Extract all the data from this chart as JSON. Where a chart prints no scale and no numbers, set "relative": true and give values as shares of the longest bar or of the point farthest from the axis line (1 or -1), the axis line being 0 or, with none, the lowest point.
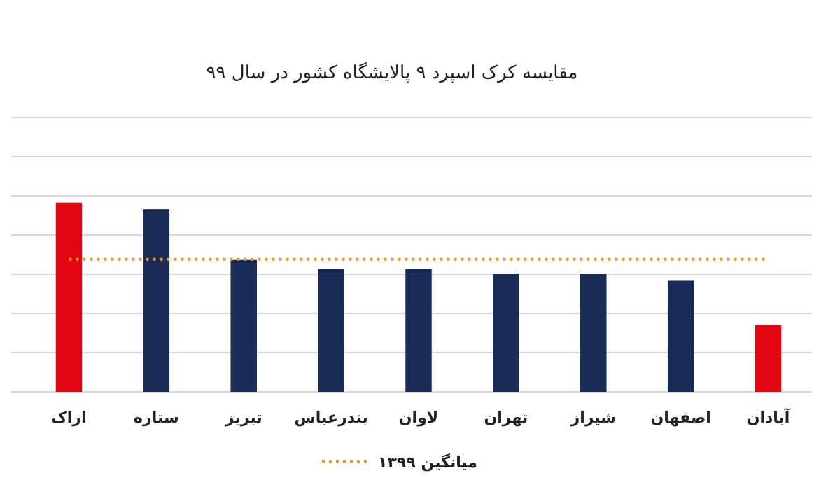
{
  "chart_data": {
    "type": "bar",
    "title": "مقایسه کرک اسپرد ۹ پالایشگاه کشور در سال ۹۹",
    "categories": [
      "اراک",
      "ستاره",
      "تبریز",
      "بندرعباس",
      "لاوان",
      "تهران",
      "شیراز",
      "اصفهان",
      "آبادان"
    ],
    "values": [
      1,
      0.965,
      0.7,
      0.65,
      0.65,
      0.625,
      0.625,
      0.59,
      0.354
    ],
    "colors": [
      "#e30613",
      "#1b2b57",
      "#1b2b57",
      "#1b2b57",
      "#1b2b57",
      "#1b2b57",
      "#1b2b57",
      "#1b2b57",
      "#e30613"
    ],
    "relative": true,
    "grid": true,
    "legend": "bottom",
    "ref_lines": [
      {
        "axis": "y",
        "value": 0.7,
        "label": "میانگین ۱۳۹۹",
        "color": "#e69a2e",
        "line_style": "dotted"
      }
    ]
  }
}
